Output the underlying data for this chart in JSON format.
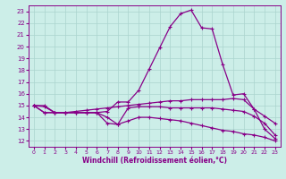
{
  "xlabel": "Windchill (Refroidissement éolien,°C)",
  "xlim": [
    -0.5,
    23.5
  ],
  "ylim": [
    11.5,
    23.5
  ],
  "xticks": [
    0,
    1,
    2,
    3,
    4,
    5,
    6,
    7,
    8,
    9,
    10,
    11,
    12,
    13,
    14,
    15,
    16,
    17,
    18,
    19,
    20,
    21,
    22,
    23
  ],
  "yticks": [
    12,
    13,
    14,
    15,
    16,
    17,
    18,
    19,
    20,
    21,
    22,
    23
  ],
  "bg_color": "#cceee8",
  "grid_color": "#aad4ce",
  "line_color": "#880088",
  "line1_y": [
    15.0,
    15.0,
    14.4,
    14.4,
    14.4,
    14.4,
    14.4,
    14.5,
    15.3,
    15.3,
    16.3,
    18.1,
    19.9,
    21.7,
    22.8,
    23.1,
    21.6,
    21.5,
    18.5,
    15.9,
    16.0,
    14.7,
    13.0,
    12.2
  ],
  "line2_y": [
    15.0,
    14.9,
    14.4,
    14.4,
    14.5,
    14.6,
    14.7,
    14.8,
    14.9,
    15.0,
    15.1,
    15.2,
    15.3,
    15.4,
    15.4,
    15.5,
    15.5,
    15.5,
    15.5,
    15.6,
    15.5,
    14.7,
    14.1,
    13.5
  ],
  "line3_y": [
    15.0,
    14.4,
    14.4,
    14.4,
    14.4,
    14.4,
    14.4,
    14.0,
    13.4,
    14.8,
    14.9,
    14.9,
    14.9,
    14.8,
    14.8,
    14.8,
    14.8,
    14.8,
    14.7,
    14.6,
    14.5,
    14.1,
    13.5,
    12.5
  ],
  "line4_y": [
    15.0,
    14.4,
    14.4,
    14.4,
    14.4,
    14.4,
    14.4,
    13.5,
    13.4,
    13.7,
    14.0,
    14.0,
    13.9,
    13.8,
    13.7,
    13.5,
    13.3,
    13.1,
    12.9,
    12.8,
    12.6,
    12.5,
    12.3,
    12.0
  ]
}
